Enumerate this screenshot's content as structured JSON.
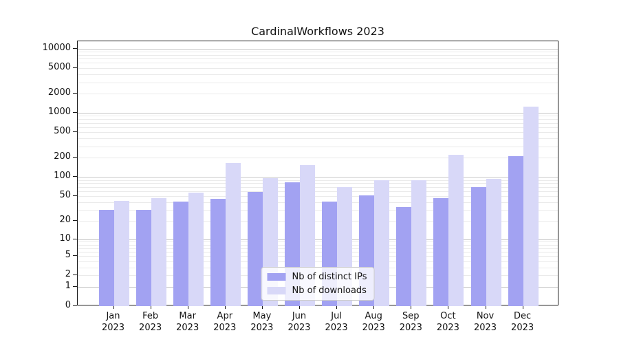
{
  "chart_data": {
    "type": "bar",
    "title": "CardinalWorkflows 2023",
    "categories": [
      "Jan 2023",
      "Feb 2023",
      "Mar 2023",
      "Apr 2023",
      "May 2023",
      "Jun 2023",
      "Jul 2023",
      "Aug 2023",
      "Sep 2023",
      "Oct 2023",
      "Nov 2023",
      "Dec 2023"
    ],
    "x_tick_months": [
      "Jan",
      "Feb",
      "Mar",
      "Apr",
      "May",
      "Jun",
      "Jul",
      "Aug",
      "Sep",
      "Oct",
      "Nov",
      "Dec"
    ],
    "x_tick_year": "2023",
    "series": [
      {
        "name": "Nb of distinct IPs",
        "color": "#a2a2f2",
        "values": [
          30,
          30,
          41,
          46,
          58,
          82,
          41,
          52,
          34,
          47,
          69,
          211
        ]
      },
      {
        "name": "Nb of downloads",
        "color": "#d8d8f8",
        "values": [
          42,
          47,
          57,
          168,
          96,
          155,
          70,
          89,
          89,
          225,
          95,
          1250
        ]
      }
    ],
    "y_scale": "log10(1+value)",
    "y_tick_values": [
      0,
      1,
      2,
      5,
      10,
      20,
      50,
      100,
      200,
      500,
      1000,
      2000,
      5000,
      10000
    ],
    "ylim": [
      0,
      13000
    ],
    "grid": {
      "major_color": "#c8c8c8",
      "minor_color": "#eaeaea"
    },
    "legend_position": "lower center"
  },
  "colors": {
    "spine": "#1a1a1a",
    "text": "#111111",
    "background": "#ffffff"
  }
}
